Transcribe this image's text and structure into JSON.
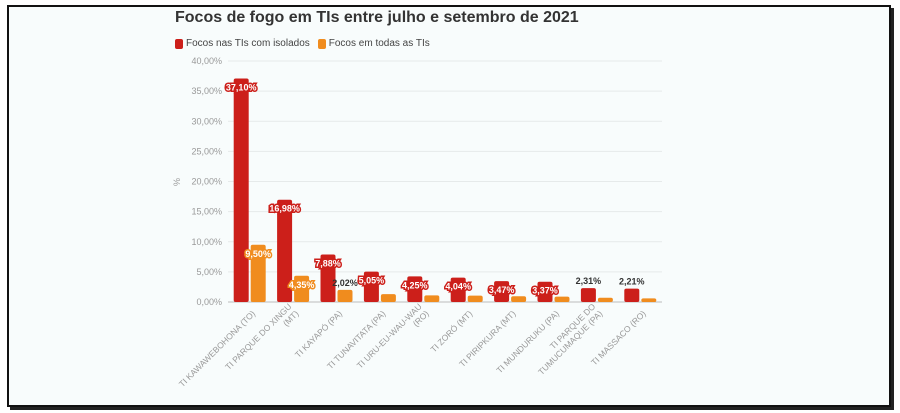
{
  "chart_data": {
    "type": "bar",
    "title": "Focos de fogo em TIs entre julho e setembro de 2021",
    "ylabel": "%",
    "ylim": [
      0,
      40
    ],
    "yticks": [
      "0,00%",
      "5,00%",
      "10,00%",
      "15,00%",
      "20,00%",
      "25,00%",
      "30,00%",
      "35,00%",
      "40,00%"
    ],
    "legend_position": "top-left",
    "colors": {
      "isolados": "#cc1f1a",
      "todas": "#f08c1e"
    },
    "categories": [
      [
        "TI KAWAHIVA DO RIO PARDO (MT)",
        "TI KAWAWEBOHONA (TO)"
      ],
      [
        "TI PARQUE DO XINGU",
        "(MT)"
      ],
      [
        "TI KAYAPÓ (PA)"
      ],
      [
        "TI TUNAVITATA (PA)"
      ],
      [
        "TI URU-EU-WAU-WAU",
        "(RO)"
      ],
      [
        "TI ZORÓ (MT)"
      ],
      [
        "TI PIRIPKURA (MT)"
      ],
      [
        "TI MUNDURUKU (PA)"
      ],
      [
        "TI PARQUE DO",
        "TUMUCUMAQUE (PA)"
      ],
      [
        "TI MASSACO (RO)"
      ]
    ],
    "series": [
      {
        "name": "Focos nas TIs com isolados",
        "values": [
          37.1,
          16.98,
          7.88,
          5.05,
          4.25,
          4.04,
          3.47,
          3.37,
          2.31,
          2.21
        ],
        "labels": [
          "37,10%",
          "16,98%",
          "7,88%",
          "5,05%",
          "4,25%",
          "4,04%",
          "3,47%",
          "3,37%",
          "2,31%",
          "2,21%"
        ]
      },
      {
        "name": "Focos em todas as TIs",
        "values": [
          9.5,
          4.35,
          2.02,
          1.3,
          1.1,
          1.05,
          0.95,
          0.9,
          0.7,
          0.6
        ],
        "labels": [
          "9,50%",
          "4,35%",
          "2,02%",
          "",
          "",
          "",
          "",
          "",
          "",
          ""
        ]
      }
    ]
  }
}
